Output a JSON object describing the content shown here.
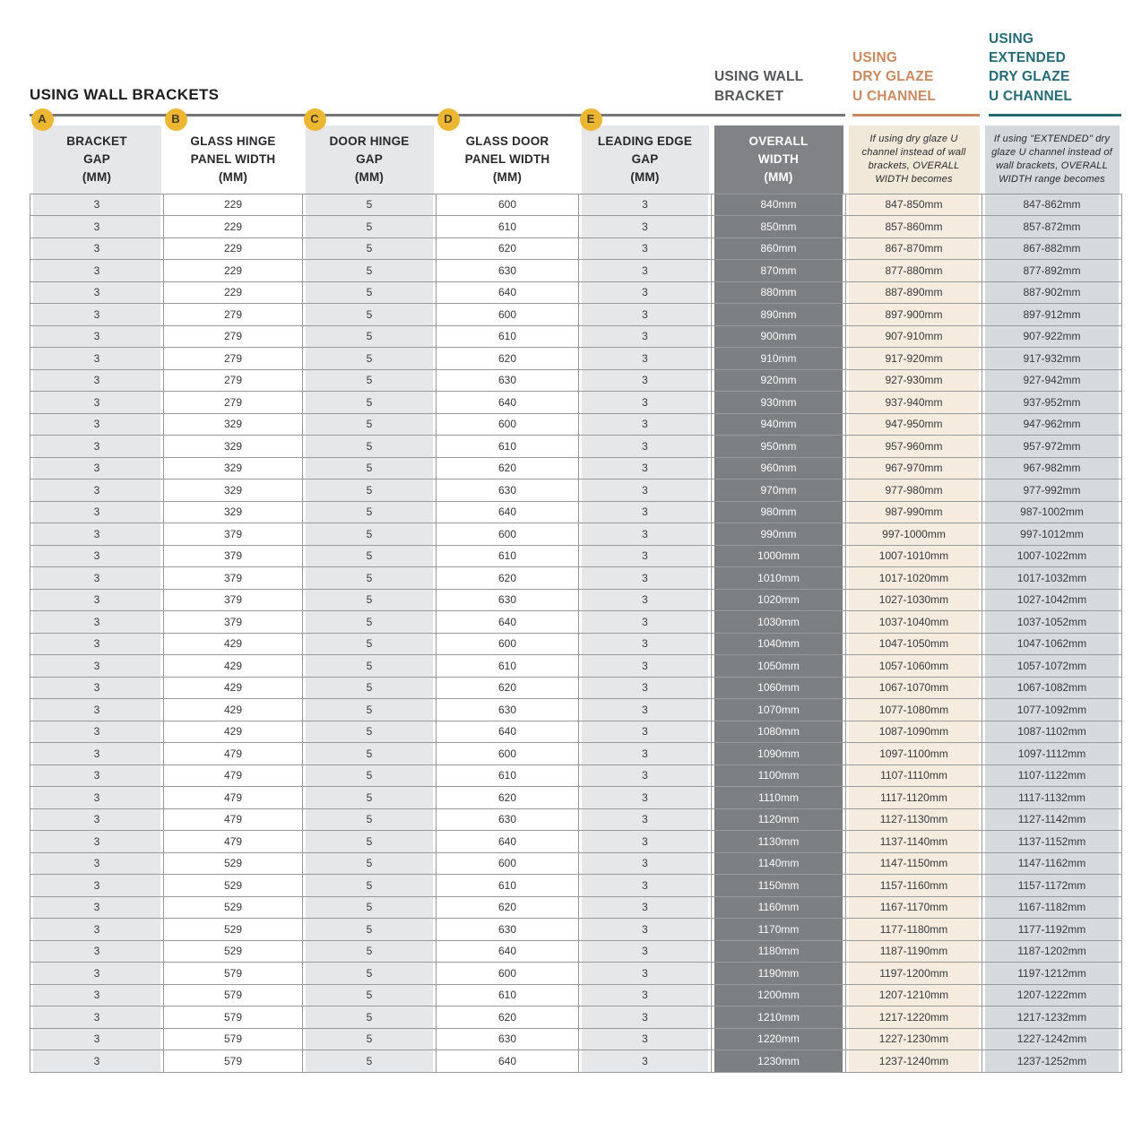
{
  "title": "USING WALL BRACKETS",
  "colors": {
    "accent_orange": "#C88A61",
    "accent_teal": "#266B75",
    "badge_yellow": "#EBB632",
    "overall_width_cell": "#7D8083",
    "dry_glaze_cell": "#F5EBDE",
    "extended_dry_glaze_cell": "#D6DADC",
    "shaded_cell": "#E6E7E8",
    "table_border": "#97999B"
  },
  "section_headings": {
    "wall_bracket": "USING WALL\nBRACKET",
    "dry_glaze": "USING\nDRY GLAZE\nU CHANNEL",
    "extended_dry_glaze": "USING\nEXTENDED\nDRY GLAZE\nU CHANNEL"
  },
  "table": {
    "columns": [
      {
        "badge": "A",
        "label": "BRACKET\nGAP\n(MM)"
      },
      {
        "badge": "B",
        "label": "GLASS HINGE\nPANEL WIDTH\n(MM)"
      },
      {
        "badge": "C",
        "label": "DOOR HINGE\nGAP\n(MM)"
      },
      {
        "badge": "D",
        "label": "GLASS DOOR\nPANEL WIDTH\n(MM)"
      },
      {
        "badge": "E",
        "label": "LEADING EDGE\nGAP\n(MM)"
      },
      {
        "badge": "",
        "label": "OVERALL\nWIDTH\n(MM)"
      },
      {
        "badge": "",
        "label": "If using dry glaze U channel instead of wall brackets, OVERALL WIDTH becomes"
      },
      {
        "badge": "",
        "label": "If using \"EXTENDED\" dry glaze U channel instead of wall brackets, OVERALL WIDTH range becomes"
      }
    ],
    "rows": [
      [
        "3",
        "229",
        "5",
        "600",
        "3",
        "840mm",
        "847-850mm",
        "847-862mm"
      ],
      [
        "3",
        "229",
        "5",
        "610",
        "3",
        "850mm",
        "857-860mm",
        "857-872mm"
      ],
      [
        "3",
        "229",
        "5",
        "620",
        "3",
        "860mm",
        "867-870mm",
        "867-882mm"
      ],
      [
        "3",
        "229",
        "5",
        "630",
        "3",
        "870mm",
        "877-880mm",
        "877-892mm"
      ],
      [
        "3",
        "229",
        "5",
        "640",
        "3",
        "880mm",
        "887-890mm",
        "887-902mm"
      ],
      [
        "3",
        "279",
        "5",
        "600",
        "3",
        "890mm",
        "897-900mm",
        "897-912mm"
      ],
      [
        "3",
        "279",
        "5",
        "610",
        "3",
        "900mm",
        "907-910mm",
        "907-922mm"
      ],
      [
        "3",
        "279",
        "5",
        "620",
        "3",
        "910mm",
        "917-920mm",
        "917-932mm"
      ],
      [
        "3",
        "279",
        "5",
        "630",
        "3",
        "920mm",
        "927-930mm",
        "927-942mm"
      ],
      [
        "3",
        "279",
        "5",
        "640",
        "3",
        "930mm",
        "937-940mm",
        "937-952mm"
      ],
      [
        "3",
        "329",
        "5",
        "600",
        "3",
        "940mm",
        "947-950mm",
        "947-962mm"
      ],
      [
        "3",
        "329",
        "5",
        "610",
        "3",
        "950mm",
        "957-960mm",
        "957-972mm"
      ],
      [
        "3",
        "329",
        "5",
        "620",
        "3",
        "960mm",
        "967-970mm",
        "967-982mm"
      ],
      [
        "3",
        "329",
        "5",
        "630",
        "3",
        "970mm",
        "977-980mm",
        "977-992mm"
      ],
      [
        "3",
        "329",
        "5",
        "640",
        "3",
        "980mm",
        "987-990mm",
        "987-1002mm"
      ],
      [
        "3",
        "379",
        "5",
        "600",
        "3",
        "990mm",
        "997-1000mm",
        "997-1012mm"
      ],
      [
        "3",
        "379",
        "5",
        "610",
        "3",
        "1000mm",
        "1007-1010mm",
        "1007-1022mm"
      ],
      [
        "3",
        "379",
        "5",
        "620",
        "3",
        "1010mm",
        "1017-1020mm",
        "1017-1032mm"
      ],
      [
        "3",
        "379",
        "5",
        "630",
        "3",
        "1020mm",
        "1027-1030mm",
        "1027-1042mm"
      ],
      [
        "3",
        "379",
        "5",
        "640",
        "3",
        "1030mm",
        "1037-1040mm",
        "1037-1052mm"
      ],
      [
        "3",
        "429",
        "5",
        "600",
        "3",
        "1040mm",
        "1047-1050mm",
        "1047-1062mm"
      ],
      [
        "3",
        "429",
        "5",
        "610",
        "3",
        "1050mm",
        "1057-1060mm",
        "1057-1072mm"
      ],
      [
        "3",
        "429",
        "5",
        "620",
        "3",
        "1060mm",
        "1067-1070mm",
        "1067-1082mm"
      ],
      [
        "3",
        "429",
        "5",
        "630",
        "3",
        "1070mm",
        "1077-1080mm",
        "1077-1092mm"
      ],
      [
        "3",
        "429",
        "5",
        "640",
        "3",
        "1080mm",
        "1087-1090mm",
        "1087-1102mm"
      ],
      [
        "3",
        "479",
        "5",
        "600",
        "3",
        "1090mm",
        "1097-1100mm",
        "1097-1112mm"
      ],
      [
        "3",
        "479",
        "5",
        "610",
        "3",
        "1100mm",
        "1107-1110mm",
        "1107-1122mm"
      ],
      [
        "3",
        "479",
        "5",
        "620",
        "3",
        "1110mm",
        "1117-1120mm",
        "1117-1132mm"
      ],
      [
        "3",
        "479",
        "5",
        "630",
        "3",
        "1120mm",
        "1127-1130mm",
        "1127-1142mm"
      ],
      [
        "3",
        "479",
        "5",
        "640",
        "3",
        "1130mm",
        "1137-1140mm",
        "1137-1152mm"
      ],
      [
        "3",
        "529",
        "5",
        "600",
        "3",
        "1140mm",
        "1147-1150mm",
        "1147-1162mm"
      ],
      [
        "3",
        "529",
        "5",
        "610",
        "3",
        "1150mm",
        "1157-1160mm",
        "1157-1172mm"
      ],
      [
        "3",
        "529",
        "5",
        "620",
        "3",
        "1160mm",
        "1167-1170mm",
        "1167-1182mm"
      ],
      [
        "3",
        "529",
        "5",
        "630",
        "3",
        "1170mm",
        "1177-1180mm",
        "1177-1192mm"
      ],
      [
        "3",
        "529",
        "5",
        "640",
        "3",
        "1180mm",
        "1187-1190mm",
        "1187-1202mm"
      ],
      [
        "3",
        "579",
        "5",
        "600",
        "3",
        "1190mm",
        "1197-1200mm",
        "1197-1212mm"
      ],
      [
        "3",
        "579",
        "5",
        "610",
        "3",
        "1200mm",
        "1207-1210mm",
        "1207-1222mm"
      ],
      [
        "3",
        "579",
        "5",
        "620",
        "3",
        "1210mm",
        "1217-1220mm",
        "1217-1232mm"
      ],
      [
        "3",
        "579",
        "5",
        "630",
        "3",
        "1220mm",
        "1227-1230mm",
        "1227-1242mm"
      ],
      [
        "3",
        "579",
        "5",
        "640",
        "3",
        "1230mm",
        "1237-1240mm",
        "1237-1252mm"
      ]
    ]
  }
}
